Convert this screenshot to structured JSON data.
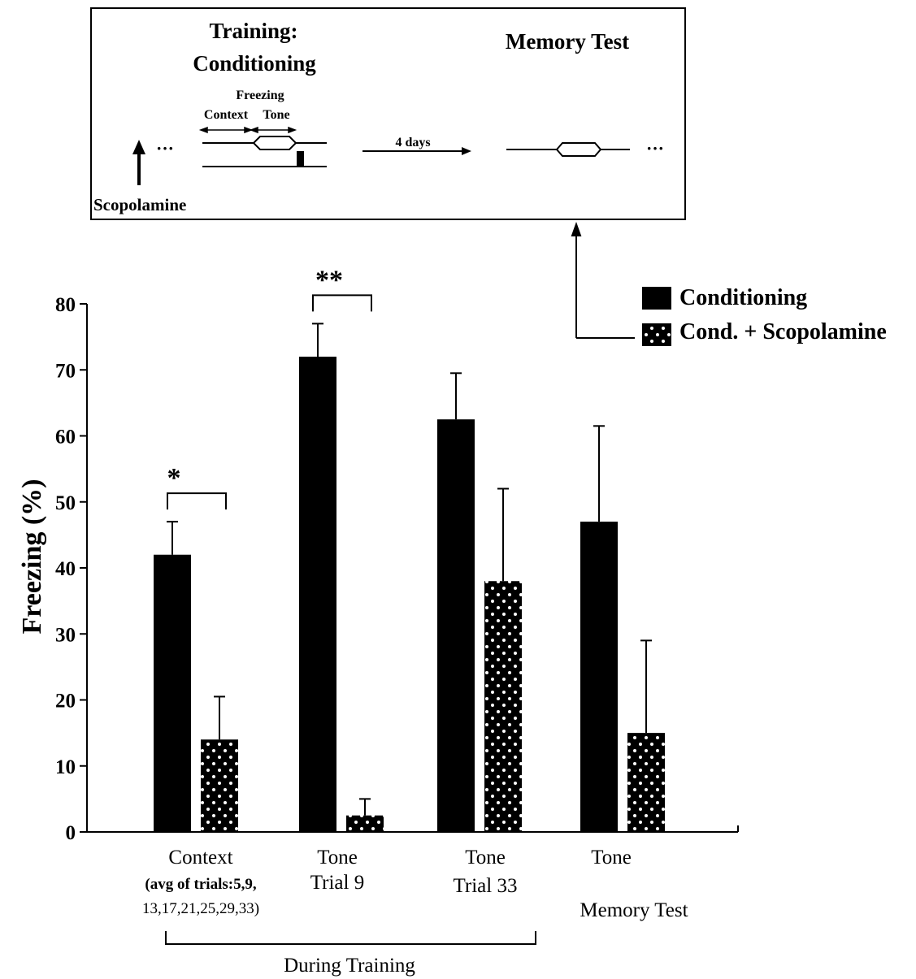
{
  "inset": {
    "training_title_line1": "Training:",
    "training_title_line2": "Conditioning",
    "memory_title": "Memory Test",
    "freezing_label": "Freezing",
    "context_label": "Context",
    "tone_label": "Tone",
    "delay_label": "4 days",
    "drug_label": "Scopolamine",
    "ellipsis": "···"
  },
  "chart_data": {
    "type": "bar",
    "title": "",
    "ylabel": "Freezing (%)",
    "xlabel": "",
    "ylim": [
      0,
      80
    ],
    "yticks": [
      0,
      10,
      20,
      30,
      40,
      50,
      60,
      70,
      80
    ],
    "categories": [
      {
        "lines": [
          "Context",
          "(avg of trials:5,9,",
          "13,17,21,25,29,33)"
        ]
      },
      {
        "lines": [
          "Tone",
          "Trial 9"
        ]
      },
      {
        "lines": [
          "Tone",
          "Trial 33"
        ]
      },
      {
        "lines": [
          "Tone",
          "Memory Test"
        ]
      }
    ],
    "group_label": "During Training",
    "series": [
      {
        "name": "Conditioning",
        "fill": "#000000",
        "pattern": "solid",
        "values": [
          42,
          72,
          62.5,
          47
        ],
        "errors": [
          5,
          5,
          7,
          14.5
        ]
      },
      {
        "name": "Cond. + Scopolamine",
        "fill": "#000000",
        "pattern": "white-dots",
        "values": [
          14,
          2.5,
          38,
          15
        ],
        "errors": [
          6.5,
          2.5,
          14,
          14
        ]
      }
    ],
    "significance": [
      {
        "category_index": 0,
        "label": "*"
      },
      {
        "category_index": 1,
        "label": "**"
      }
    ],
    "legend_position": "top-right"
  }
}
